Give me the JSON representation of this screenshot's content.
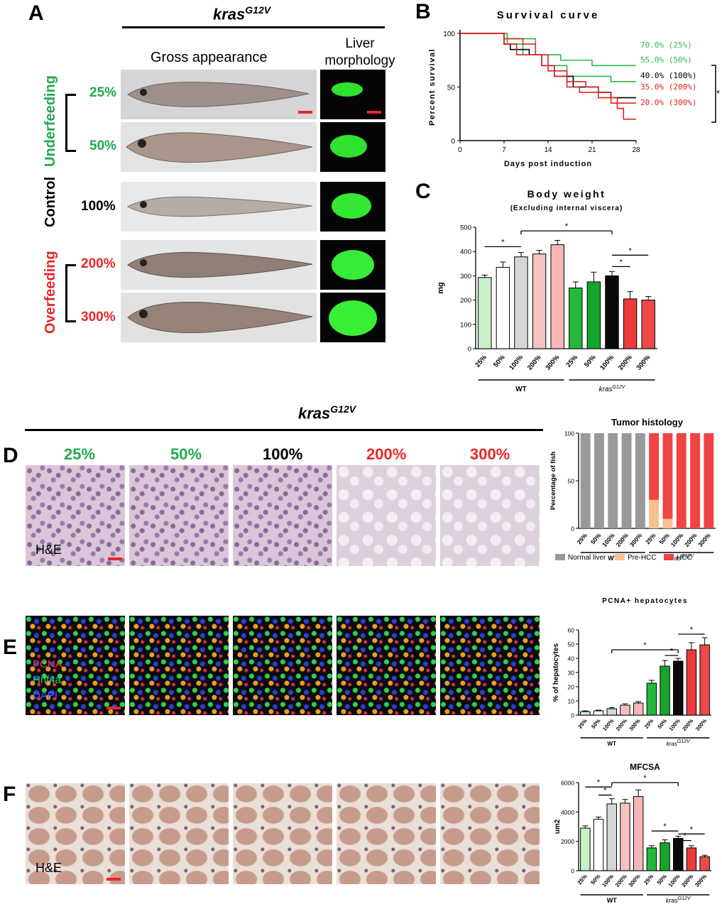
{
  "panels": {
    "a": "A",
    "b": "B",
    "c": "C",
    "d": "D",
    "e": "E",
    "f": "F"
  },
  "genotype": {
    "base": "kras",
    "sup": "G12V"
  },
  "panelA": {
    "col_gross": "Gross appearance",
    "col_liver_1": "Liver",
    "col_liver_2": "morphology",
    "group_under": "Underfeeding",
    "group_control": "Control",
    "group_over": "Overfeeding",
    "rows": [
      "25%",
      "50%",
      "100%",
      "200%",
      "300%"
    ]
  },
  "panelD": {
    "columns": [
      "25%",
      "50%",
      "100%",
      "200%",
      "300%"
    ],
    "stain": "H&E"
  },
  "panelE": {
    "key": [
      "PCNA",
      "Hnf4a",
      "DAPI"
    ]
  },
  "panelF": {
    "stain": "H&E"
  },
  "colors": {
    "wt_25": "#c8f0c8",
    "wt_50": "#ffffff",
    "wt_100": "#d6d6d6",
    "wt_200": "#f5c1c1",
    "wt_300": "#f7b7b7",
    "kr_25": "#25b93b",
    "kr_50": "#15a52c",
    "kr_100": "#0a0a0a",
    "kr_200": "#ec3b3b",
    "kr_300": "#ef4848",
    "green": "#22a94f",
    "red": "#e8262a"
  },
  "chart_data": [
    {
      "id": "survival",
      "type": "line",
      "title": "Survival curve",
      "xlabel": "Days post induction",
      "ylabel": "Percent survival",
      "xlim": [
        0,
        28
      ],
      "ylim": [
        0,
        100
      ],
      "xticks": [
        0,
        7,
        14,
        21,
        28
      ],
      "yticks": [
        0,
        50,
        100
      ],
      "significance": "*",
      "series": [
        {
          "name": "70.0% (25%)",
          "color": "#2db84a",
          "x": [
            0,
            7.5,
            7.5,
            12,
            12,
            16,
            16,
            21,
            21,
            28
          ],
          "y": [
            100,
            100,
            95,
            95,
            80,
            80,
            75,
            75,
            70,
            70
          ]
        },
        {
          "name": "55.0% (50%)",
          "color": "#2db84a",
          "x": [
            0,
            7.5,
            7.5,
            10,
            10,
            13,
            13,
            17,
            17,
            24,
            24,
            28
          ],
          "y": [
            100,
            100,
            90,
            90,
            80,
            80,
            70,
            70,
            60,
            60,
            55,
            55
          ]
        },
        {
          "name": "40.0% (100%)",
          "color": "#000000",
          "x": [
            0,
            7,
            7,
            8,
            8,
            11,
            11,
            13,
            13,
            15,
            15,
            18,
            18,
            22,
            22,
            24,
            24,
            28
          ],
          "y": [
            100,
            100,
            90,
            90,
            85,
            85,
            80,
            80,
            70,
            70,
            60,
            60,
            50,
            50,
            45,
            45,
            40,
            40
          ]
        },
        {
          "name": "35.0% (200%)",
          "color": "#e02424",
          "x": [
            0,
            7,
            7,
            10,
            10,
            12,
            12,
            14,
            14,
            17,
            17,
            20,
            20,
            22,
            22,
            24,
            24,
            28
          ],
          "y": [
            100,
            100,
            95,
            95,
            90,
            90,
            80,
            80,
            65,
            65,
            55,
            55,
            50,
            50,
            45,
            45,
            35,
            35
          ]
        },
        {
          "name": "20.0% (300%)",
          "color": "#e02424",
          "x": [
            0,
            7,
            7,
            9,
            9,
            13,
            13,
            15,
            15,
            17,
            17,
            19,
            19,
            22,
            22,
            25,
            25,
            26,
            26,
            28
          ],
          "y": [
            100,
            100,
            90,
            90,
            80,
            80,
            70,
            70,
            60,
            60,
            50,
            50,
            45,
            45,
            40,
            40,
            30,
            30,
            20,
            20
          ]
        }
      ]
    },
    {
      "id": "body_weight",
      "type": "bar",
      "title": "Body weight",
      "subtitle": "(Excluding internal viscera)",
      "ylabel": "mg",
      "ylim": [
        0,
        500
      ],
      "yticks": [
        0,
        100,
        200,
        300,
        400,
        500
      ],
      "categories": [
        "25%",
        "50%",
        "100%",
        "200%",
        "300%",
        "25%",
        "50%",
        "100%",
        "200%",
        "300%"
      ],
      "groups": [
        {
          "label": "WT"
        },
        {
          "label": "kras",
          "sup": "G12V"
        }
      ],
      "values": [
        293,
        335,
        378,
        390,
        428,
        250,
        275,
        300,
        205,
        200
      ],
      "errors": [
        10,
        22,
        18,
        15,
        18,
        25,
        40,
        18,
        30,
        15
      ],
      "significance": "*"
    },
    {
      "id": "tumor_histology",
      "type": "bar",
      "title": "Tumor histology",
      "ylabel": "Percentage of fish",
      "ylim": [
        0,
        100
      ],
      "yticks": [
        0,
        50,
        100
      ],
      "categories": [
        "25%",
        "50%",
        "100%",
        "200%",
        "300%",
        "25%",
        "50%",
        "100%",
        "200%",
        "300%"
      ],
      "groups": [
        {
          "label": "WT"
        },
        {
          "label": "kras",
          "sup": "G12V"
        }
      ],
      "legend": [
        "Normal liver",
        "Pre-HCC",
        "HCC"
      ],
      "series": [
        {
          "name": "Normal liver",
          "color": "#999999",
          "values": [
            100,
            100,
            100,
            100,
            100,
            0,
            0,
            0,
            0,
            0
          ]
        },
        {
          "name": "Pre-HCC",
          "color": "#f6c08f",
          "values": [
            0,
            0,
            0,
            0,
            0,
            30,
            10,
            0,
            0,
            0
          ]
        },
        {
          "name": "HCC",
          "color": "#ef4444",
          "values": [
            0,
            0,
            0,
            0,
            0,
            70,
            90,
            100,
            100,
            100
          ]
        }
      ]
    },
    {
      "id": "pcna",
      "type": "bar",
      "title": "PCNA+ hepatocytes",
      "ylabel": "% of hepatocytes",
      "ylim": [
        0,
        60
      ],
      "yticks": [
        0,
        10,
        20,
        30,
        40,
        50,
        60
      ],
      "categories": [
        "25%",
        "50%",
        "100%",
        "200%",
        "300%",
        "25%",
        "50%",
        "100%",
        "200%",
        "300%"
      ],
      "groups": [
        {
          "label": "WT"
        },
        {
          "label": "kras",
          "sup": "G12V"
        }
      ],
      "values": [
        2.5,
        3,
        4.5,
        7,
        8.5,
        22.5,
        34.5,
        38,
        46,
        49.5
      ],
      "errors": [
        0.5,
        0.5,
        0.8,
        1,
        1,
        2,
        4,
        2,
        5,
        5
      ],
      "significance": "*"
    },
    {
      "id": "mfcsa",
      "type": "bar",
      "title": "MFCSA",
      "ylabel": "um2",
      "ylim": [
        0,
        6000
      ],
      "yticks": [
        0,
        2000,
        4000,
        6000
      ],
      "categories": [
        "25%",
        "50%",
        "100%",
        "200%",
        "300%",
        "25%",
        "50%",
        "100%",
        "200%",
        "300%"
      ],
      "groups": [
        {
          "label": "WT"
        },
        {
          "label": "kras",
          "sup": "G12V"
        }
      ],
      "values": [
        2900,
        3500,
        4550,
        4600,
        5050,
        1550,
        1900,
        2200,
        1550,
        950
      ],
      "errors": [
        150,
        150,
        350,
        250,
        450,
        150,
        200,
        150,
        150,
        100
      ],
      "significance": "*"
    }
  ]
}
